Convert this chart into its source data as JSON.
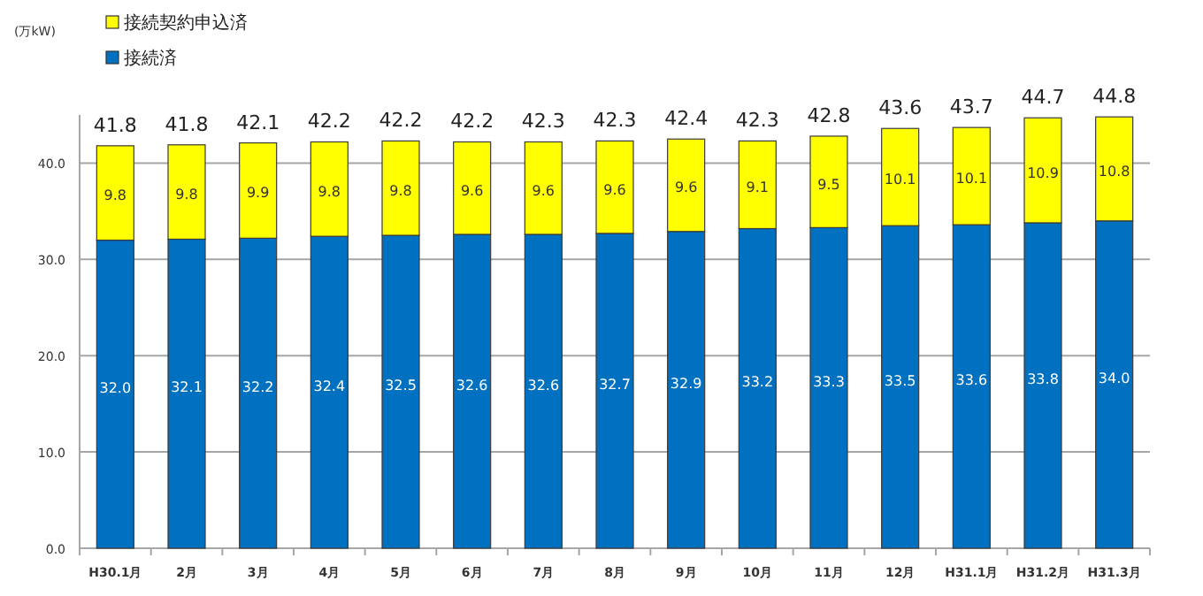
{
  "chart_data": {
    "type": "bar",
    "stacked": true,
    "annotations": [
      "(万kW)"
    ],
    "categories": [
      "H30.1月",
      "2月",
      "3月",
      "4月",
      "5月",
      "6月",
      "7月",
      "8月",
      "9月",
      "10月",
      "11月",
      "12月",
      "H31.1月",
      "H31.2月",
      "H31.3月"
    ],
    "series": [
      {
        "name": "接続済",
        "color": "#0070c0",
        "values": [
          32.0,
          32.1,
          32.2,
          32.4,
          32.5,
          32.6,
          32.6,
          32.7,
          32.9,
          33.2,
          33.3,
          33.5,
          33.6,
          33.8,
          34.0
        ],
        "value_labels": [
          "32.0",
          "32.1",
          "32.2",
          "32.4",
          "32.5",
          "32.6",
          "32.6",
          "32.7",
          "32.9",
          "33.2",
          "33.3",
          "33.5",
          "33.6",
          "33.8",
          "34.0"
        ]
      },
      {
        "name": "接続契約申込済",
        "color": "#ffff00",
        "values": [
          9.8,
          9.8,
          9.9,
          9.8,
          9.8,
          9.6,
          9.6,
          9.6,
          9.6,
          9.1,
          9.5,
          10.1,
          10.1,
          10.9,
          10.8
        ],
        "value_labels": [
          "9.8",
          "9.8",
          "9.9",
          "9.8",
          "9.8",
          "9.6",
          "9.6",
          "9.6",
          "9.6",
          "9.1",
          "9.5",
          "10.1",
          "10.1",
          "10.9",
          "10.8"
        ]
      }
    ],
    "totals": [
      "41.8",
      "41.8",
      "42.1",
      "42.2",
      "42.2",
      "42.2",
      "42.3",
      "42.3",
      "42.4",
      "42.3",
      "42.8",
      "43.6",
      "43.7",
      "44.7",
      "44.8"
    ],
    "ylim": [
      0,
      45
    ],
    "yticks": [
      {
        "value": 0,
        "label": "0.0"
      },
      {
        "value": 10,
        "label": "10.0"
      },
      {
        "value": 20,
        "label": "20.0"
      },
      {
        "value": 30,
        "label": "30.0"
      },
      {
        "value": 40,
        "label": "40.0"
      }
    ],
    "grid": "y",
    "legend": "top left"
  }
}
